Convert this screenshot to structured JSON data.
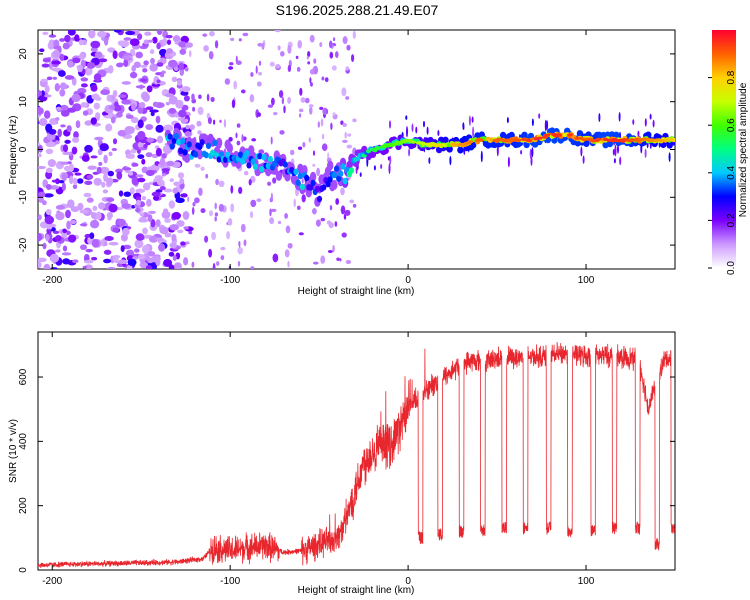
{
  "title": "S196.2025.288.21.49.E07",
  "chart_data": [
    {
      "type": "heatmap",
      "xlabel": "Height of straight line (km)",
      "ylabel": "Frequency (Hz)",
      "xlim": [
        -208,
        150
      ],
      "ylim": [
        -25,
        25
      ],
      "xticks": [
        -200,
        -100,
        0,
        100
      ],
      "yticks": [
        -20,
        -10,
        0,
        10,
        20
      ],
      "colorbar": {
        "label": "Normalized spectral amplitude",
        "range": [
          0.0,
          1.0
        ],
        "ticks": [
          0.0,
          0.2,
          0.4,
          0.6,
          0.8
        ],
        "tick_labels": [
          "0.0",
          "0.2",
          "0.4",
          "0.6",
          "0.8"
        ],
        "colors": [
          "#ffffff",
          "#cc99ff",
          "#7a00ff",
          "#0000ff",
          "#00c8ff",
          "#00ff80",
          "#40ff00",
          "#c8ff00",
          "#ffd000",
          "#ff6000",
          "#ff0030"
        ]
      },
      "ridge": {
        "x": [
          -135,
          -120,
          -110,
          -100,
          -90,
          -80,
          -70,
          -60,
          -50,
          -45,
          -40,
          -35,
          -30,
          -20,
          -10,
          0,
          10,
          20,
          30,
          40,
          50,
          60,
          70,
          80,
          90,
          100,
          110,
          120,
          130,
          140,
          150
        ],
        "frequency": [
          2,
          0,
          0,
          -1,
          -2,
          -3,
          -4,
          -6,
          -9,
          -6,
          -5,
          -5,
          -2,
          0,
          1,
          2,
          1,
          1,
          1,
          2,
          2,
          2,
          2,
          3,
          3,
          2,
          2,
          2,
          2,
          2,
          2
        ],
        "amplitude": [
          0.45,
          0.4,
          0.45,
          0.4,
          0.4,
          0.45,
          0.35,
          0.45,
          0.3,
          0.3,
          0.4,
          0.5,
          0.5,
          0.55,
          0.6,
          0.65,
          0.7,
          0.8,
          0.85,
          0.9,
          0.9,
          0.9,
          0.95,
          0.95,
          0.95,
          0.9,
          0.95,
          0.95,
          0.9,
          0.85,
          0.8
        ]
      }
    },
    {
      "type": "line",
      "xlabel": "Height of straight line (km)",
      "ylabel": "SNR (10 * v/v)",
      "xlim": [
        -208,
        150
      ],
      "ylim": [
        0,
        740
      ],
      "xticks": [
        -200,
        -100,
        0,
        100
      ],
      "yticks": [
        0,
        200,
        400,
        600
      ],
      "color": "#e8262e",
      "series": [
        {
          "name": "SNR",
          "x": [
            -208,
            -190,
            -170,
            -150,
            -130,
            -115,
            -110,
            -100,
            -90,
            -80,
            -70,
            -60,
            -50,
            -40,
            -35,
            -30,
            -25,
            -20,
            -15,
            -10,
            -5,
            0,
            5,
            10,
            15,
            20,
            25,
            30,
            35,
            40,
            45,
            50,
            55,
            60,
            65,
            70,
            75,
            80,
            85,
            90,
            95,
            100,
            105,
            110,
            115,
            120,
            125,
            130,
            135,
            140,
            145,
            150
          ],
          "y": [
            15,
            18,
            20,
            22,
            25,
            35,
            70,
            60,
            70,
            75,
            55,
            60,
            80,
            100,
            150,
            250,
            330,
            370,
            380,
            390,
            440,
            500,
            530,
            560,
            580,
            600,
            620,
            640,
            650,
            650,
            650,
            660,
            660,
            660,
            665,
            665,
            665,
            670,
            670,
            675,
            670,
            665,
            665,
            665,
            665,
            660,
            660,
            650,
            500,
            600,
            660,
            650
          ]
        }
      ],
      "dropouts": [
        {
          "x": 7,
          "y": 100
        },
        {
          "x": 18,
          "y": 110
        },
        {
          "x": 30,
          "y": 120
        },
        {
          "x": 42,
          "y": 125
        },
        {
          "x": 54,
          "y": 130
        },
        {
          "x": 66,
          "y": 130
        },
        {
          "x": 79,
          "y": 130
        },
        {
          "x": 91,
          "y": 120
        },
        {
          "x": 104,
          "y": 125
        },
        {
          "x": 116,
          "y": 130
        },
        {
          "x": 129,
          "y": 130
        },
        {
          "x": 140,
          "y": 80
        },
        {
          "x": 149,
          "y": 130
        }
      ]
    }
  ]
}
